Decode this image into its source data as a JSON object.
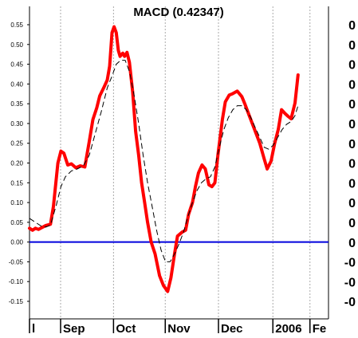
{
  "chart_data": {
    "type": "line",
    "title": "MACD (0.42347)",
    "xlabel": "",
    "ylabel": "",
    "ylim": [
      -0.17,
      0.57
    ],
    "xlim": [
      0,
      100
    ],
    "grid": {
      "vertical": true,
      "horizontal": false
    },
    "y_ticks": [
      "0.55",
      "0.50",
      "0.45",
      "0.40",
      "0.35",
      "0.30",
      "0.25",
      "0.20",
      "0.15",
      "0.10",
      "0.05",
      "0.00",
      "-0.05",
      "-0.10",
      "-0.15"
    ],
    "right_ticks": [
      "0",
      "0",
      "0",
      "0",
      "0",
      "0",
      "0",
      "0",
      "0",
      "0",
      "0",
      "0",
      "-0",
      "-0",
      "-0"
    ],
    "x_ticks": [
      {
        "label": "l",
        "x": 0
      },
      {
        "label": "Sep",
        "x": 10.4
      },
      {
        "label": "Oct",
        "x": 28.1
      },
      {
        "label": "Nov",
        "x": 45.4
      },
      {
        "label": "Dec",
        "x": 63.2
      },
      {
        "label": "2006",
        "x": 81.4
      },
      {
        "label": "Fe",
        "x": 93.8
      }
    ],
    "zero_line": 0.0,
    "colors": {
      "macd": "#ff0000",
      "signal": "#000000",
      "zero": "#0000dd",
      "grid": "#aaaaaa"
    },
    "series": [
      {
        "style": "solid-red",
        "points": [
          [
            0.0,
            0.035
          ],
          [
            1.0,
            0.03
          ],
          [
            2.0,
            0.035
          ],
          [
            3.0,
            0.032
          ],
          [
            4.0,
            0.036
          ],
          [
            5.5,
            0.042
          ],
          [
            7.0,
            0.045
          ],
          [
            8.0,
            0.09
          ],
          [
            9.5,
            0.2
          ],
          [
            10.5,
            0.23
          ],
          [
            11.5,
            0.225
          ],
          [
            12.8,
            0.195
          ],
          [
            14.0,
            0.198
          ],
          [
            15.5,
            0.188
          ],
          [
            17.0,
            0.193
          ],
          [
            18.5,
            0.19
          ],
          [
            20.0,
            0.255
          ],
          [
            21.2,
            0.31
          ],
          [
            22.5,
            0.34
          ],
          [
            23.5,
            0.37
          ],
          [
            24.8,
            0.39
          ],
          [
            26.0,
            0.41
          ],
          [
            26.8,
            0.445
          ],
          [
            27.6,
            0.53
          ],
          [
            28.3,
            0.545
          ],
          [
            29.0,
            0.53
          ],
          [
            29.7,
            0.485
          ],
          [
            30.3,
            0.47
          ],
          [
            31.2,
            0.478
          ],
          [
            31.8,
            0.47
          ],
          [
            32.6,
            0.48
          ],
          [
            33.4,
            0.455
          ],
          [
            34.5,
            0.38
          ],
          [
            35.5,
            0.28
          ],
          [
            36.5,
            0.22
          ],
          [
            37.5,
            0.15
          ],
          [
            38.5,
            0.1
          ],
          [
            39.5,
            0.05
          ],
          [
            40.7,
            0.0
          ],
          [
            42.0,
            -0.03
          ],
          [
            43.5,
            -0.085
          ],
          [
            44.8,
            -0.11
          ],
          [
            46.2,
            -0.125
          ],
          [
            47.3,
            -0.09
          ],
          [
            48.5,
            -0.03
          ],
          [
            49.5,
            0.015
          ],
          [
            51.0,
            0.025
          ],
          [
            52.2,
            0.03
          ],
          [
            53.2,
            0.07
          ],
          [
            54.5,
            0.1
          ],
          [
            55.5,
            0.14
          ],
          [
            56.5,
            0.175
          ],
          [
            57.7,
            0.195
          ],
          [
            58.8,
            0.185
          ],
          [
            60.0,
            0.145
          ],
          [
            61.0,
            0.14
          ],
          [
            62.0,
            0.15
          ],
          [
            63.0,
            0.22
          ],
          [
            64.5,
            0.31
          ],
          [
            65.5,
            0.355
          ],
          [
            66.8,
            0.372
          ],
          [
            67.8,
            0.375
          ],
          [
            69.5,
            0.382
          ],
          [
            71.0,
            0.368
          ],
          [
            72.0,
            0.35
          ],
          [
            73.5,
            0.32
          ],
          [
            75.0,
            0.29
          ],
          [
            77.0,
            0.25
          ],
          [
            78.5,
            0.21
          ],
          [
            79.5,
            0.185
          ],
          [
            80.8,
            0.205
          ],
          [
            82.0,
            0.25
          ],
          [
            83.2,
            0.285
          ],
          [
            84.3,
            0.335
          ],
          [
            85.5,
            0.325
          ],
          [
            86.5,
            0.318
          ],
          [
            87.5,
            0.312
          ],
          [
            88.8,
            0.352
          ],
          [
            89.8,
            0.423
          ]
        ]
      },
      {
        "style": "dashed-black",
        "points": [
          [
            0.0,
            0.06
          ],
          [
            2.0,
            0.05
          ],
          [
            4.0,
            0.04
          ],
          [
            5.5,
            0.038
          ],
          [
            7.0,
            0.043
          ],
          [
            9.0,
            0.095
          ],
          [
            10.5,
            0.14
          ],
          [
            12.0,
            0.165
          ],
          [
            14.0,
            0.18
          ],
          [
            16.0,
            0.185
          ],
          [
            18.0,
            0.193
          ],
          [
            20.0,
            0.22
          ],
          [
            22.0,
            0.275
          ],
          [
            24.0,
            0.33
          ],
          [
            26.0,
            0.39
          ],
          [
            27.6,
            0.42
          ],
          [
            29.0,
            0.45
          ],
          [
            30.5,
            0.46
          ],
          [
            32.0,
            0.46
          ],
          [
            33.5,
            0.43
          ],
          [
            35.0,
            0.37
          ],
          [
            36.5,
            0.3
          ],
          [
            38.0,
            0.22
          ],
          [
            39.5,
            0.15
          ],
          [
            41.0,
            0.09
          ],
          [
            42.5,
            0.03
          ],
          [
            44.0,
            -0.02
          ],
          [
            45.5,
            -0.05
          ],
          [
            47.0,
            -0.05
          ],
          [
            48.5,
            -0.03
          ],
          [
            50.0,
            -0.005
          ],
          [
            51.5,
            0.025
          ],
          [
            53.0,
            0.065
          ],
          [
            54.5,
            0.1
          ],
          [
            56.0,
            0.13
          ],
          [
            57.5,
            0.15
          ],
          [
            59.0,
            0.16
          ],
          [
            60.5,
            0.165
          ],
          [
            62.0,
            0.19
          ],
          [
            63.5,
            0.24
          ],
          [
            65.0,
            0.285
          ],
          [
            66.5,
            0.315
          ],
          [
            68.0,
            0.335
          ],
          [
            69.5,
            0.345
          ],
          [
            71.0,
            0.345
          ],
          [
            72.5,
            0.335
          ],
          [
            74.0,
            0.315
          ],
          [
            75.5,
            0.29
          ],
          [
            77.0,
            0.265
          ],
          [
            78.5,
            0.24
          ],
          [
            80.0,
            0.235
          ],
          [
            81.5,
            0.245
          ],
          [
            83.0,
            0.265
          ],
          [
            84.5,
            0.285
          ],
          [
            86.0,
            0.298
          ],
          [
            87.5,
            0.305
          ],
          [
            88.8,
            0.32
          ],
          [
            89.8,
            0.345
          ]
        ]
      }
    ]
  }
}
